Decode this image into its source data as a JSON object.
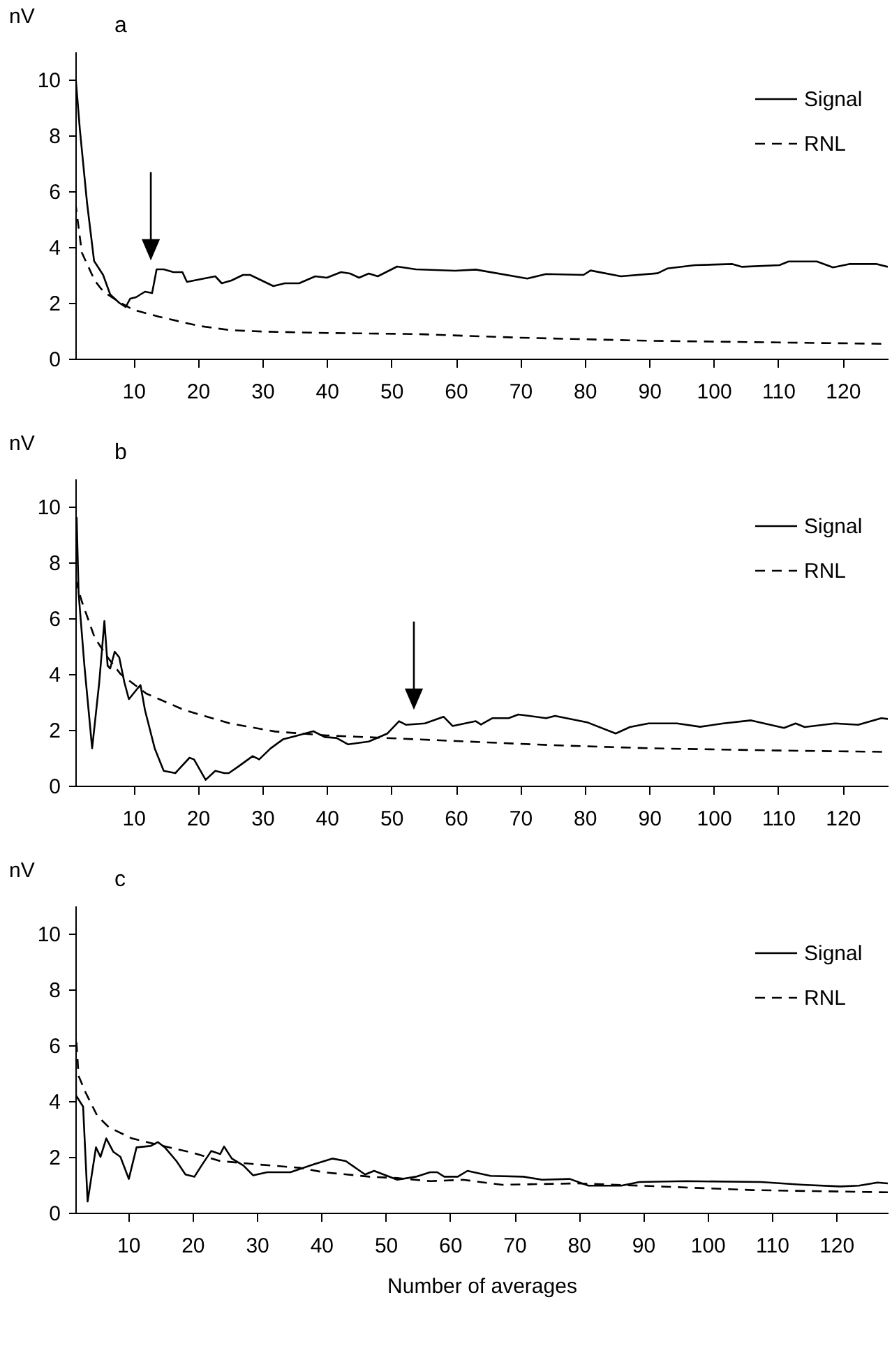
{
  "chart_data": [
    {
      "type": "line",
      "title": "a",
      "ylabel": "nV",
      "xlim": [
        1,
        127
      ],
      "ylim": [
        0,
        11
      ],
      "xticks": [
        10,
        20,
        30,
        40,
        50,
        60,
        70,
        80,
        90,
        100,
        110,
        120
      ],
      "yticks": [
        0,
        2,
        4,
        6,
        8,
        10
      ],
      "legend": "top right",
      "marker": "none",
      "series": [
        {
          "name": "Signal",
          "color": "#000000",
          "line_style": "solid",
          "x": [
            1,
            1.7,
            2.8,
            3.9,
            5.3,
            6.4,
            7.8,
            8.8,
            9.5,
            10.4,
            11.8,
            12.9,
            13.6,
            14.7,
            16.2,
            17.6,
            18.3,
            20.5,
            22.7,
            23.7,
            25.2,
            27,
            28.1,
            29.9,
            31.7,
            33.5,
            35.7,
            38.2,
            40,
            42.2,
            43.6,
            45,
            46.5,
            47.9,
            50.9,
            53.8,
            59.9,
            63.1,
            71.1,
            74,
            79.8,
            80.9,
            85.6,
            91.3,
            92.8,
            97.1,
            102.9,
            104.4,
            110.2,
            111.6,
            116,
            118.5,
            121,
            125.3,
            127
          ],
          "values": [
            10.2,
            8.2,
            5.6,
            3.5,
            3.0,
            2.3,
            2.0,
            1.85,
            2.15,
            2.2,
            2.4,
            2.35,
            3.2,
            3.2,
            3.1,
            3.1,
            2.75,
            2.85,
            2.95,
            2.7,
            2.8,
            3.0,
            3.0,
            2.8,
            2.6,
            2.7,
            2.7,
            2.95,
            2.9,
            3.1,
            3.05,
            2.9,
            3.05,
            2.95,
            3.3,
            3.2,
            3.15,
            3.19,
            2.87,
            3.03,
            3.0,
            3.16,
            2.95,
            3.06,
            3.23,
            3.35,
            3.39,
            3.29,
            3.35,
            3.48,
            3.48,
            3.27,
            3.39,
            3.39,
            3.29
          ]
        },
        {
          "name": "RNL",
          "color": "#000000",
          "line_style": "dashed",
          "x": [
            1,
            2,
            3,
            4,
            5,
            6,
            8,
            10,
            14,
            20,
            25,
            30,
            40,
            54,
            70,
            90,
            110,
            127
          ],
          "values": [
            5.6,
            3.8,
            3.3,
            2.8,
            2.5,
            2.3,
            2.0,
            1.75,
            1.5,
            1.18,
            1.02,
            0.97,
            0.92,
            0.88,
            0.75,
            0.64,
            0.58,
            0.53
          ]
        }
      ]
    },
    {
      "type": "line",
      "title": "b",
      "ylabel": "nV",
      "xlim": [
        1,
        127
      ],
      "ylim": [
        0,
        11
      ],
      "xticks": [
        10,
        20,
        30,
        40,
        50,
        60,
        70,
        80,
        90,
        100,
        110,
        120
      ],
      "yticks": [
        0,
        2,
        4,
        6,
        8,
        10
      ],
      "legend": "top right",
      "marker": "none",
      "series": [
        {
          "name": "Signal",
          "color": "#000000",
          "line_style": "solid",
          "x": [
            1,
            1.2,
            1.5,
            2.4,
            3.6,
            4.7,
            5.5,
            6,
            6.4,
            7.1,
            7.8,
            8.6,
            9.3,
            10.7,
            11.1,
            11.8,
            13.3,
            14.7,
            16.5,
            18.7,
            19.4,
            21.2,
            22.7,
            24.1,
            24.8,
            26.3,
            28.5,
            29.5,
            31.3,
            33.2,
            35,
            37.9,
            39.7,
            41.5,
            43.3,
            46.5,
            49.4,
            51.2,
            52.3,
            55.2,
            58.1,
            59.5,
            63.1,
            63.9,
            65.7,
            68.2,
            69.7,
            74,
            75.4,
            80.5,
            84.8,
            87,
            89.9,
            94.3,
            97.9,
            101.5,
            105.8,
            110.9,
            112.7,
            114.1,
            118.8,
            122.4,
            126,
            127
          ],
          "values": [
            8.35,
            9.6,
            6.9,
            4.3,
            1.34,
            3.7,
            5.9,
            4.3,
            4.2,
            4.8,
            4.6,
            3.7,
            3.1,
            3.5,
            3.6,
            2.7,
            1.34,
            0.53,
            0.45,
            1.0,
            0.94,
            0.21,
            0.53,
            0.45,
            0.45,
            0.69,
            1.06,
            0.94,
            1.34,
            1.66,
            1.77,
            1.95,
            1.74,
            1.71,
            1.48,
            1.58,
            1.87,
            2.31,
            2.18,
            2.23,
            2.47,
            2.14,
            2.31,
            2.19,
            2.42,
            2.42,
            2.55,
            2.42,
            2.5,
            2.26,
            1.87,
            2.1,
            2.23,
            2.23,
            2.11,
            2.23,
            2.34,
            2.07,
            2.23,
            2.1,
            2.23,
            2.18,
            2.42,
            2.39
          ]
        },
        {
          "name": "RNL",
          "color": "#000000",
          "line_style": "dashed",
          "x": [
            1,
            2,
            4,
            6,
            8,
            12,
            18,
            25,
            32,
            40,
            50,
            60,
            75,
            90,
            110,
            127
          ],
          "values": [
            7.4,
            6.6,
            5.3,
            4.6,
            4.0,
            3.3,
            2.7,
            2.23,
            1.94,
            1.8,
            1.7,
            1.6,
            1.45,
            1.34,
            1.26,
            1.21
          ]
        }
      ]
    },
    {
      "type": "line",
      "title": "c",
      "ylabel": "nV",
      "xlabel": "Number of averages",
      "xlim": [
        1.8,
        128
      ],
      "ylim": [
        0,
        11
      ],
      "xticks": [
        10,
        20,
        30,
        40,
        50,
        60,
        70,
        80,
        90,
        100,
        110,
        120
      ],
      "yticks": [
        0,
        2,
        4,
        6,
        8,
        10
      ],
      "legend": "top right",
      "marker": "none",
      "series": [
        {
          "name": "Signal",
          "color": "#000000",
          "line_style": "solid",
          "x": [
            1.8,
            1.9,
            3,
            3.7,
            5,
            5.7,
            6.6,
            7.7,
            8.8,
            10.1,
            11.3,
            13.5,
            14.6,
            15.7,
            17.5,
            18.9,
            20.3,
            21.4,
            22.9,
            24.3,
            24.9,
            26.1,
            27.9,
            29.4,
            31.6,
            35.2,
            38.8,
            41.7,
            43.8,
            46.8,
            48.2,
            51.8,
            54.7,
            56.9,
            58,
            59.1,
            61.2,
            62.7,
            66.3,
            71.4,
            74.3,
            78.6,
            81.5,
            86.6,
            89.4,
            96.7,
            108.3,
            114.8,
            120.6,
            123.5,
            126.4,
            128
          ],
          "values": [
            10.9,
            4.2,
            3.8,
            0.4,
            2.34,
            2.0,
            2.66,
            2.18,
            2.0,
            1.21,
            2.34,
            2.39,
            2.53,
            2.34,
            1.85,
            1.37,
            1.29,
            1.69,
            2.21,
            2.1,
            2.37,
            1.94,
            1.69,
            1.34,
            1.45,
            1.45,
            1.73,
            1.94,
            1.85,
            1.37,
            1.5,
            1.18,
            1.29,
            1.45,
            1.45,
            1.29,
            1.29,
            1.5,
            1.32,
            1.29,
            1.18,
            1.21,
            0.97,
            0.97,
            1.1,
            1.13,
            1.1,
            1.0,
            0.94,
            0.97,
            1.08,
            1.05
          ]
        },
        {
          "name": "RNL",
          "color": "#000000",
          "line_style": "dashed",
          "x": [
            1.8,
            2.3,
            3.4,
            5.2,
            7,
            10.6,
            14.9,
            20,
            24.3,
            30.1,
            36.6,
            40.3,
            47.5,
            51.8,
            56.9,
            62,
            68.1,
            79.7,
            89.4,
            107,
            128
          ],
          "values": [
            6.7,
            4.9,
            4.3,
            3.47,
            3.06,
            2.66,
            2.42,
            2.15,
            1.85,
            1.73,
            1.61,
            1.45,
            1.29,
            1.24,
            1.13,
            1.18,
            1.0,
            1.05,
            0.97,
            0.81,
            0.73
          ]
        }
      ]
    }
  ]
}
